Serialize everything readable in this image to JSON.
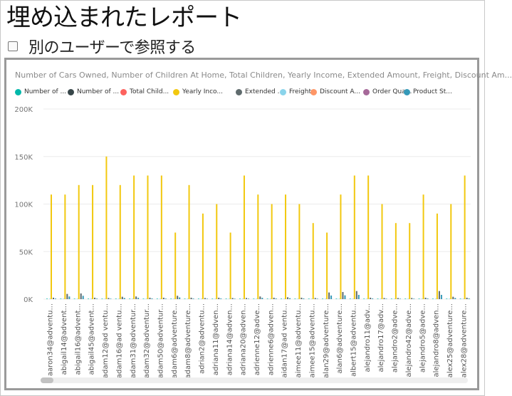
{
  "page": {
    "title": "埋め込まれたレポート",
    "view_as_label": "別のユーザーで参照する",
    "view_as_checked": false
  },
  "visual": {
    "title": "Number of Cars Owned, Number of Children At Home, Total Children, Yearly Income, Extended Amount, Freight, Discount Am..."
  },
  "chart_data": {
    "type": "bar",
    "y_ticks": [
      "200K",
      "150K",
      "100K",
      "50K",
      "0K"
    ],
    "ylim": [
      0,
      200000
    ],
    "legend_position": "top-left",
    "series": [
      {
        "name": "Number of ...",
        "color": "#01B8AA"
      },
      {
        "name": "Number of ...",
        "color": "#374649"
      },
      {
        "name": "Total Child...",
        "color": "#FD625E"
      },
      {
        "name": "Yearly Inco...",
        "color": "#F2C80F"
      },
      {
        "name": "Extended ...",
        "color": "#5F6B6D"
      },
      {
        "name": "Freight",
        "color": "#8AD4EB"
      },
      {
        "name": "Discount A...",
        "color": "#FE9666"
      },
      {
        "name": "Order Qua...",
        "color": "#A66999"
      },
      {
        "name": "Product St...",
        "color": "#3599B8"
      }
    ],
    "categories": [
      "aaron34@adventu...",
      "abigail14@advent...",
      "abigail16@advent...",
      "abigail45@advent...",
      "adam12@ad ventu...",
      "adam16@ad ventu...",
      "adam31@adventur...",
      "adam32@adventur...",
      "adam50@adventur...",
      "adam6@adventure...",
      "adam8@adventure...",
      "adrian2@adventu...",
      "adriana11@adven...",
      "adriana14@adven...",
      "adriana20@adven...",
      "adrienne12@adve...",
      "adrienne6@adven...",
      "aidan17@ad ventu...",
      "aimee11@adventu...",
      "aimee15@adventu...",
      "alan29@adventure...",
      "alan6@adventure...",
      "albert15@adventu...",
      "alejandro11@adv...",
      "alejandro17@adv...",
      "alejandro2@adve...",
      "alejandro42@adve...",
      "alejandro5@adve...",
      "alejandro8@adven...",
      "alex25@adventure...",
      "alex28@adventure..."
    ],
    "yearly_income": [
      110000,
      110000,
      120000,
      120000,
      150000,
      120000,
      130000,
      130000,
      130000,
      70000,
      120000,
      90000,
      100000,
      70000,
      130000,
      110000,
      100000,
      110000,
      100000,
      80000,
      70000,
      110000,
      130000,
      130000,
      100000,
      80000,
      80000,
      110000,
      90000,
      100000,
      130000
    ],
    "extended_amount": [
      1500,
      5500,
      6000,
      1500,
      1200,
      2500,
      2800,
      1500,
      1500,
      3500,
      1500,
      1200,
      1500,
      1200,
      1200,
      2800,
      1500,
      2000,
      1500,
      1200,
      7000,
      7500,
      8500,
      1500,
      1200,
      1200,
      1200,
      1500,
      8500,
      2500,
      1500
    ],
    "product_std_cost": [
      600,
      2800,
      3500,
      600,
      500,
      1200,
      1400,
      700,
      600,
      1800,
      600,
      500,
      700,
      500,
      500,
      1400,
      700,
      1000,
      700,
      500,
      3800,
      4000,
      4500,
      700,
      500,
      500,
      500,
      700,
      4500,
      1200,
      700
    ],
    "small_value": [
      500,
      500,
      500,
      500,
      500,
      500,
      500,
      500,
      500,
      500,
      500,
      500,
      500,
      500,
      500,
      500,
      500,
      500,
      500,
      500,
      500,
      500,
      500,
      500,
      500,
      500,
      500,
      500,
      500,
      500,
      500
    ]
  }
}
